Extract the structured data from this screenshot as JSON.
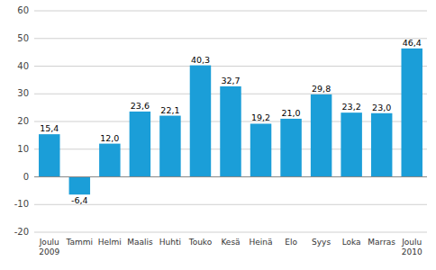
{
  "chart_data": {
    "type": "bar",
    "categories": [
      "Joulu\n2009",
      "Tammi",
      "Helmi",
      "Maalis",
      "Huhti",
      "Touko",
      "Kesä",
      "Heinä",
      "Elo",
      "Syys",
      "Loka",
      "Marras",
      "Joulu\n2010"
    ],
    "values": [
      15.4,
      -6.4,
      12.0,
      23.6,
      22.1,
      40.3,
      32.7,
      19.2,
      21.0,
      29.8,
      23.2,
      23.0,
      46.4
    ],
    "value_labels": [
      "15,4",
      "-6,4",
      "12,0",
      "23,6",
      "22,1",
      "40,3",
      "32,7",
      "19,2",
      "21,0",
      "29,8",
      "23,2",
      "23,0",
      "46,4"
    ],
    "color": "#1b9ed8",
    "ylim": [
      -20,
      60
    ],
    "yticks": [
      -20,
      -10,
      0,
      10,
      20,
      30,
      40,
      50,
      60
    ],
    "grid": true,
    "data_labels": true
  }
}
